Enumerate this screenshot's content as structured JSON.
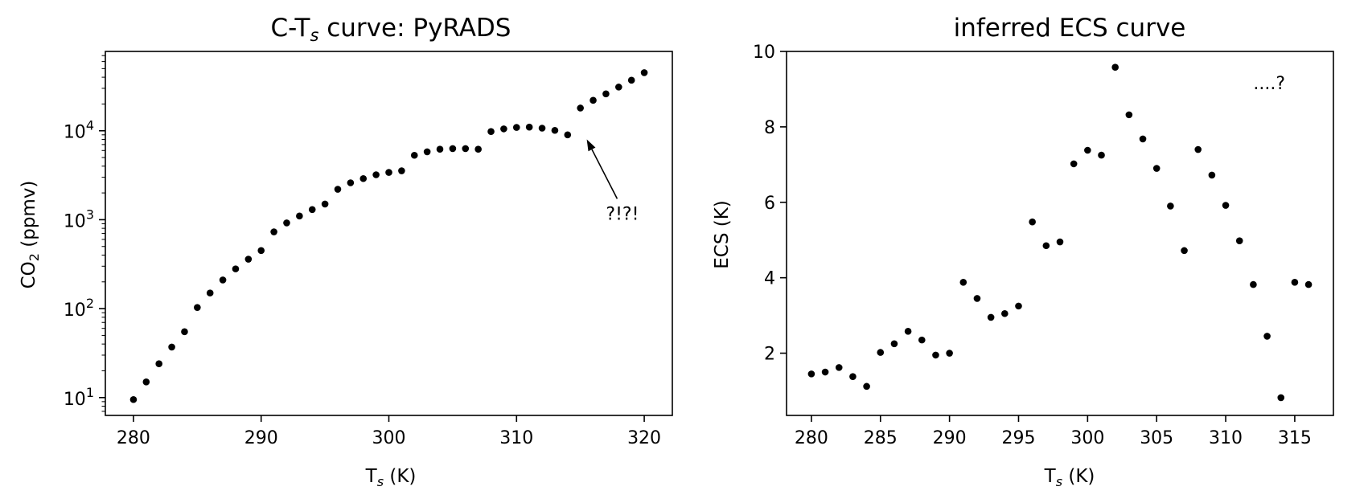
{
  "chart_data": [
    {
      "type": "scatter",
      "title_pre": "C-T",
      "title_sub": "s",
      "title_post": " curve: PyRADS",
      "xlabel_pre": "T",
      "xlabel_sub": "s",
      "xlabel_post": " (K)",
      "ylabel_pre": "CO",
      "ylabel_sub": "2",
      "ylabel_post": " (ppmv)",
      "xlim": [
        277.8,
        322.2
      ],
      "ylim": [
        6.3,
        78000
      ],
      "yscale": "log",
      "xticks": [
        280,
        290,
        300,
        310,
        320
      ],
      "yticks": [
        {
          "value": 10,
          "base": "10",
          "exp": "1"
        },
        {
          "value": 100,
          "base": "10",
          "exp": "2"
        },
        {
          "value": 1000,
          "base": "10",
          "exp": "3"
        },
        {
          "value": 10000,
          "base": "10",
          "exp": "4"
        }
      ],
      "grid": false,
      "marker_color": "#000000",
      "x": [
        280,
        281,
        282,
        283,
        284,
        285,
        286,
        287,
        288,
        289,
        290,
        291,
        292,
        293,
        294,
        295,
        296,
        297,
        298,
        299,
        300,
        301,
        302,
        303,
        304,
        305,
        306,
        307,
        308,
        309,
        310,
        311,
        312,
        313,
        314,
        315,
        316,
        317,
        318,
        319,
        320
      ],
      "y": [
        9.5,
        15,
        24,
        37,
        55,
        103,
        150,
        210,
        280,
        360,
        450,
        730,
        920,
        1100,
        1300,
        1500,
        2200,
        2600,
        2900,
        3200,
        3400,
        3550,
        5300,
        5800,
        6200,
        6300,
        6300,
        6200,
        9800,
        10500,
        10900,
        11000,
        10700,
        10100,
        9000,
        18000,
        22000,
        26000,
        31000,
        37000,
        45000
      ],
      "annotation": {
        "text": "?!?!",
        "x": 317,
        "y": 1000,
        "arrow_to_x": 315.5,
        "arrow_to_y": 8000
      }
    },
    {
      "type": "scatter",
      "title": "inferred ECS curve",
      "xlabel_pre": "T",
      "xlabel_sub": "s",
      "xlabel_post": " (K)",
      "ylabel": "ECS (K)",
      "xlim": [
        278.2,
        317.8
      ],
      "ylim": [
        0.35,
        10.0
      ],
      "yscale": "linear",
      "xticks": [
        280,
        285,
        290,
        295,
        300,
        305,
        310,
        315
      ],
      "yticks": [
        2,
        4,
        6,
        8,
        10
      ],
      "grid": false,
      "marker_color": "#000000",
      "x": [
        280,
        281,
        282,
        283,
        284,
        285,
        286,
        287,
        288,
        289,
        290,
        291,
        292,
        293,
        294,
        295,
        296,
        297,
        298,
        299,
        300,
        301,
        302,
        303,
        304,
        305,
        306,
        307,
        308,
        309,
        310,
        311,
        312,
        313,
        314,
        315,
        316
      ],
      "y": [
        1.45,
        1.5,
        1.62,
        1.38,
        1.12,
        2.02,
        2.25,
        2.58,
        2.35,
        1.95,
        2.0,
        3.88,
        3.45,
        2.95,
        3.05,
        3.25,
        5.48,
        4.85,
        4.95,
        7.02,
        7.38,
        7.25,
        9.58,
        8.32,
        7.68,
        6.9,
        5.9,
        4.72,
        7.4,
        6.72,
        5.92,
        4.98,
        3.82,
        2.45,
        0.82,
        3.88,
        3.82
      ],
      "annotation": {
        "text": "....?",
        "x": 312,
        "y": 9.0
      }
    }
  ]
}
